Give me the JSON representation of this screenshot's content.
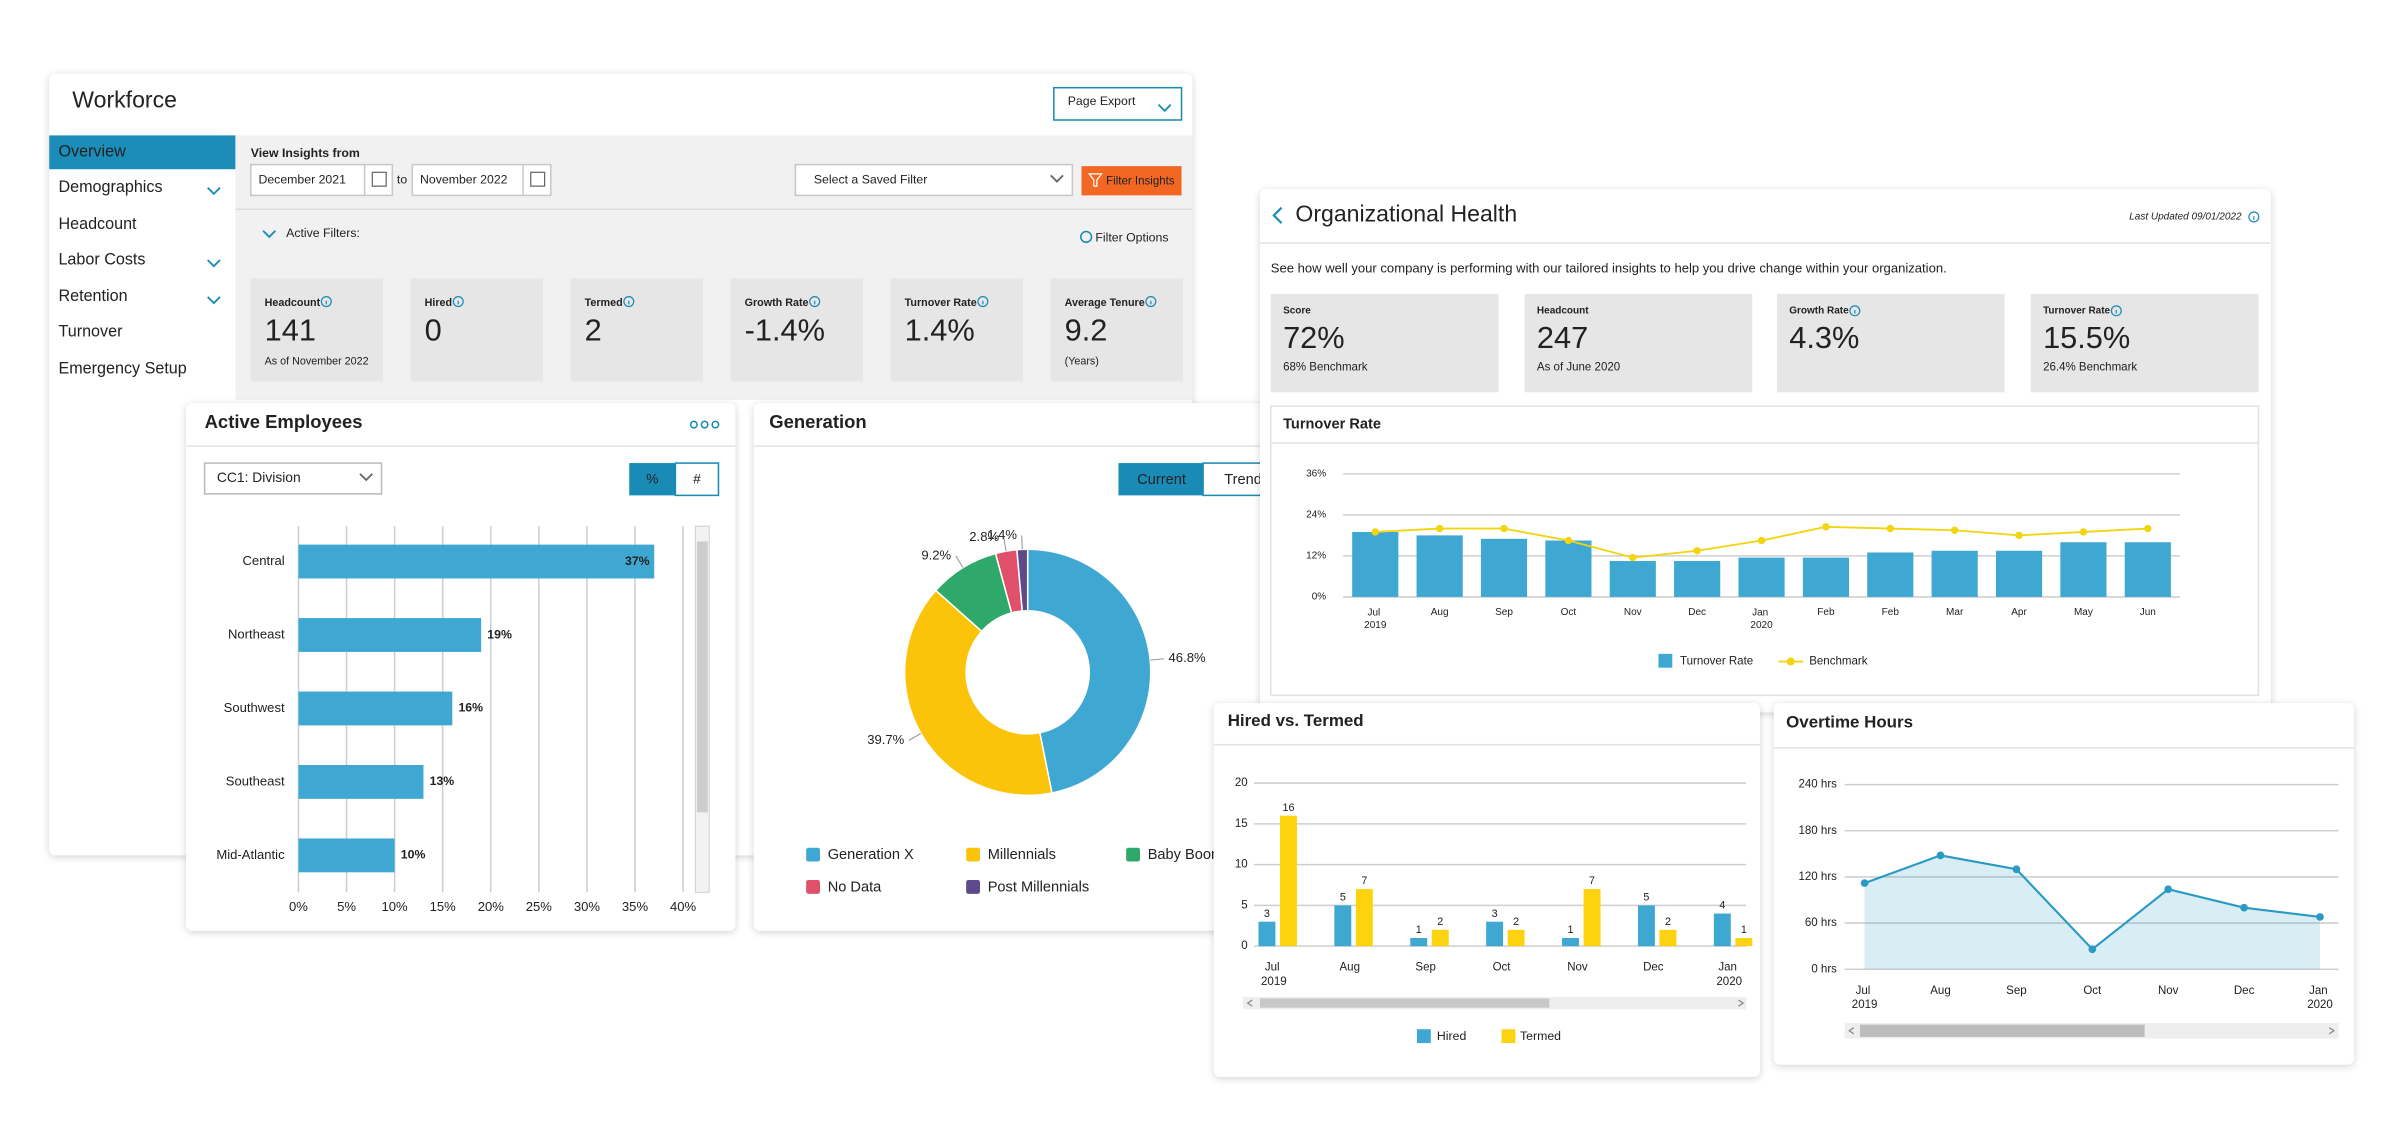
{
  "workforce": {
    "title": "Workforce",
    "page_export": "Page Export",
    "nav": [
      "Overview",
      "Demographics",
      "Headcount",
      "Labor Costs",
      "Retention",
      "Turnover",
      "Emergency Setup"
    ],
    "view_insights_from": "View Insights from",
    "date_from": "December 2021",
    "to": "to",
    "date_to": "November 2022",
    "saved_filter": "Select a Saved Filter",
    "filter_insights": "Filter Insights",
    "active_filters": "Active Filters:",
    "filter_options": "Filter Options",
    "kpis": [
      {
        "label": "Headcount",
        "value": "141",
        "note": "As of November 2022"
      },
      {
        "label": "Hired",
        "value": "0"
      },
      {
        "label": "Termed",
        "value": "2"
      },
      {
        "label": "Growth Rate",
        "value": "-1.4%"
      },
      {
        "label": "Turnover Rate",
        "value": "1.4%"
      },
      {
        "label": "Average Tenure",
        "value": "9.2",
        "note": "(Years)"
      }
    ]
  },
  "org_health": {
    "title": "Organizational Health",
    "last_updated": "Last Updated 09/01/2022",
    "description": "See how well your company is performing with our tailored insights to help you drive change within your organization.",
    "kpis": [
      {
        "label": "Score",
        "value": "72%",
        "note": "68% Benchmark"
      },
      {
        "label": "Headcount",
        "value": "247",
        "note": "As of June 2020"
      },
      {
        "label": "Growth Rate",
        "value": "4.3%"
      },
      {
        "label": "Turnover Rate",
        "value": "15.5%",
        "note": "26.4% Benchmark"
      }
    ]
  },
  "chart_data": [
    {
      "type": "bar",
      "orientation": "horizontal",
      "title": "Active Employees",
      "dropdown": "CC1: Division",
      "toggle": [
        "%",
        "#"
      ],
      "categories": [
        "Central",
        "Northeast",
        "Southwest",
        "Southeast",
        "Mid-Atlantic"
      ],
      "values": [
        37,
        19,
        16,
        13,
        10
      ],
      "value_labels": [
        "37%",
        "19%",
        "16%",
        "13%",
        "10%"
      ],
      "color": "#3ea8d2",
      "xlim": [
        0,
        40
      ],
      "xticks": [
        {
          "value": 0,
          "label": "0%"
        },
        {
          "value": 5,
          "label": "5%"
        },
        {
          "value": 10,
          "label": "10%"
        },
        {
          "value": 15,
          "label": "15%"
        },
        {
          "value": 20,
          "label": "20%"
        },
        {
          "value": 25,
          "label": "25%"
        },
        {
          "value": 30,
          "label": "30%"
        },
        {
          "value": 35,
          "label": "35%"
        },
        {
          "value": 40,
          "label": "40%"
        }
      ],
      "grid": true
    },
    {
      "type": "donut",
      "title": "Generation",
      "buttons": [
        "Current",
        "Trend"
      ],
      "categories": [
        "Generation X",
        "Millennials",
        "Baby Boomers",
        "No Data",
        "Post Millennials"
      ],
      "values": [
        46.8,
        39.7,
        9.2,
        2.8,
        1.4
      ],
      "value_labels": [
        "46.8%",
        "39.7%",
        "9.2%",
        "2.8%",
        "1.4%"
      ],
      "colors": [
        "#3ea8d2",
        "#fcc30b",
        "#2fa86b",
        "#e0506a",
        "#5c4a8a"
      ]
    },
    {
      "type": "combo",
      "title": "Turnover Rate",
      "categories": [
        "Jul 2019",
        "Aug",
        "Sep",
        "Oct",
        "Nov",
        "Dec",
        "Jan 2020",
        "Feb",
        "Feb",
        "Mar",
        "Apr",
        "May",
        "Jun"
      ],
      "series": [
        {
          "name": "Turnover Rate",
          "type": "bar",
          "color": "#3ea8d2",
          "values": [
            19,
            18,
            17,
            16.5,
            10.5,
            10.5,
            11.5,
            11.5,
            13,
            13.5,
            13.5,
            16,
            16
          ]
        },
        {
          "name": "Benchmark",
          "type": "line",
          "color": "#f2d40f",
          "values": [
            19,
            20,
            20,
            16.5,
            11.5,
            13.5,
            16.5,
            20.5,
            20,
            19.5,
            18,
            19,
            20
          ]
        }
      ],
      "ylim": [
        0,
        36
      ],
      "yticks": [
        {
          "value": 0,
          "label": "0%"
        },
        {
          "value": 12,
          "label": "12%"
        },
        {
          "value": 24,
          "label": "24%"
        },
        {
          "value": 36,
          "label": "36%"
        }
      ],
      "grid": true
    },
    {
      "type": "bar",
      "title": "Hired vs. Termed",
      "categories": [
        "Jul 2019",
        "Aug",
        "Sep",
        "Oct",
        "Nov",
        "Dec",
        "Jan 2020"
      ],
      "series": [
        {
          "name": "Hired",
          "color": "#3ea8d2",
          "values": [
            3,
            5,
            1,
            3,
            1,
            5,
            4
          ]
        },
        {
          "name": "Termed",
          "color": "#fdd30f",
          "values": [
            16,
            7,
            2,
            2,
            7,
            2,
            1
          ]
        }
      ],
      "ylim": [
        0,
        20
      ],
      "yticks": [
        0,
        5,
        10,
        15,
        20
      ],
      "grid": true
    },
    {
      "type": "area",
      "title": "Overtime Hours",
      "categories": [
        "Jul 2019",
        "Aug",
        "Sep",
        "Oct",
        "Nov",
        "Dec",
        "Jan 2020"
      ],
      "values": [
        112,
        148,
        130,
        26,
        104,
        80,
        68
      ],
      "color": "#2a9ac4",
      "ylim": [
        0,
        240
      ],
      "yticks": [
        {
          "value": 0,
          "label": "0 hrs"
        },
        {
          "value": 60,
          "label": "60 hrs"
        },
        {
          "value": 120,
          "label": "120 hrs"
        },
        {
          "value": 180,
          "label": "180 hrs"
        },
        {
          "value": 240,
          "label": "240 hrs"
        }
      ],
      "grid": true
    }
  ]
}
